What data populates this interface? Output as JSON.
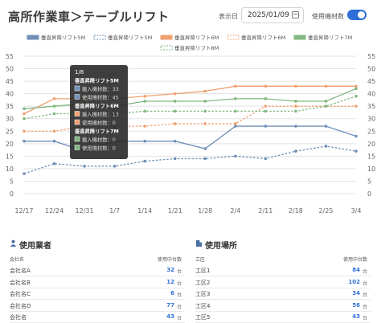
{
  "header": {
    "title": "高所作業車＞テーブルリフト",
    "date_label": "表示日",
    "date_value": "2025/01/09",
    "toggle_label": "使用機材数",
    "toggle_on": true
  },
  "chart_data": {
    "type": "line",
    "categories": [
      "12/17",
      "12/24",
      "12/31",
      "1/7",
      "1/14",
      "1/21",
      "1/28",
      "2/4",
      "2/11",
      "2/18",
      "2/25",
      "3/4"
    ],
    "ylim": [
      0,
      55
    ],
    "yticks": [
      0,
      5,
      10,
      15,
      20,
      25,
      30,
      35,
      40,
      45,
      50,
      55
    ],
    "grid": true,
    "legend_position": "top",
    "series": [
      {
        "name": "垂直昇降リフト5M",
        "color": "#6f8fb8",
        "dashed": false,
        "values": [
          21,
          21,
          17,
          21,
          21,
          21,
          18,
          27,
          27,
          27,
          27,
          23
        ]
      },
      {
        "name": "垂直昇降リフト5M",
        "color": "#6f8fb8",
        "dashed": true,
        "values": [
          8,
          12,
          11,
          11,
          13,
          14,
          14,
          15,
          14,
          17,
          19,
          17
        ]
      },
      {
        "name": "垂直昇降リフト6M",
        "color": "#f0a070",
        "dashed": false,
        "values": [
          32,
          38,
          38,
          38,
          39,
          40,
          41,
          43,
          43,
          43,
          43,
          43
        ]
      },
      {
        "name": "垂直昇降リフト6M",
        "color": "#f0a070",
        "dashed": true,
        "values": [
          25,
          25,
          27,
          27,
          27,
          28,
          28,
          28,
          35,
          35,
          35,
          35
        ]
      },
      {
        "name": "垂直昇降リフト7M",
        "color": "#80b880",
        "dashed": false,
        "values": [
          34,
          35,
          36,
          35,
          37,
          37,
          37,
          38,
          38,
          37,
          37,
          42
        ]
      },
      {
        "name": "垂直昇降リフト8M",
        "color": "#80b880",
        "dashed": true,
        "values": [
          30,
          32,
          32,
          32,
          33,
          33,
          33,
          33,
          33,
          33,
          35,
          39
        ]
      }
    ],
    "tooltip": {
      "title": "1/8",
      "groups": [
        {
          "name": "垂直昇降リフト5M",
          "lines": [
            {
              "label": "搬入機材数",
              "value": "33",
              "color": "#6f8fb8"
            },
            {
              "label": "使用機材数",
              "value": "45",
              "color": "#6f8fb8"
            }
          ]
        },
        {
          "name": "垂直昇降リフト6M",
          "lines": [
            {
              "label": "搬入機材数",
              "value": "13",
              "color": "#f0a070"
            },
            {
              "label": "使用機材数",
              "value": "0",
              "color": "#f0a070"
            }
          ]
        },
        {
          "name": "垂直昇降リフト7M",
          "lines": [
            {
              "label": "搬入機材数",
              "value": "0",
              "color": "#80b880"
            },
            {
              "label": "使用機材数",
              "value": "0",
              "color": "#80b880"
            }
          ]
        }
      ]
    }
  },
  "users_panel": {
    "title": "使用業者",
    "col_name": "会社名",
    "col_count": "使用中台数",
    "unit": "台",
    "rows": [
      {
        "name": "会社名A",
        "count": "32"
      },
      {
        "name": "会社名B",
        "count": "12"
      },
      {
        "name": "会社名C",
        "count": "6"
      },
      {
        "name": "会社名D",
        "count": "77"
      },
      {
        "name": "会社名",
        "count": "43"
      }
    ]
  },
  "places_panel": {
    "title": "使用場所",
    "col_name": "工区",
    "col_count": "使用中台数",
    "unit": "台",
    "rows": [
      {
        "name": "工区1",
        "count": "84"
      },
      {
        "name": "工区2",
        "count": "102"
      },
      {
        "name": "工区3",
        "count": "34"
      },
      {
        "name": "工区4",
        "count": "56"
      },
      {
        "name": "工区5",
        "count": "43"
      }
    ]
  }
}
